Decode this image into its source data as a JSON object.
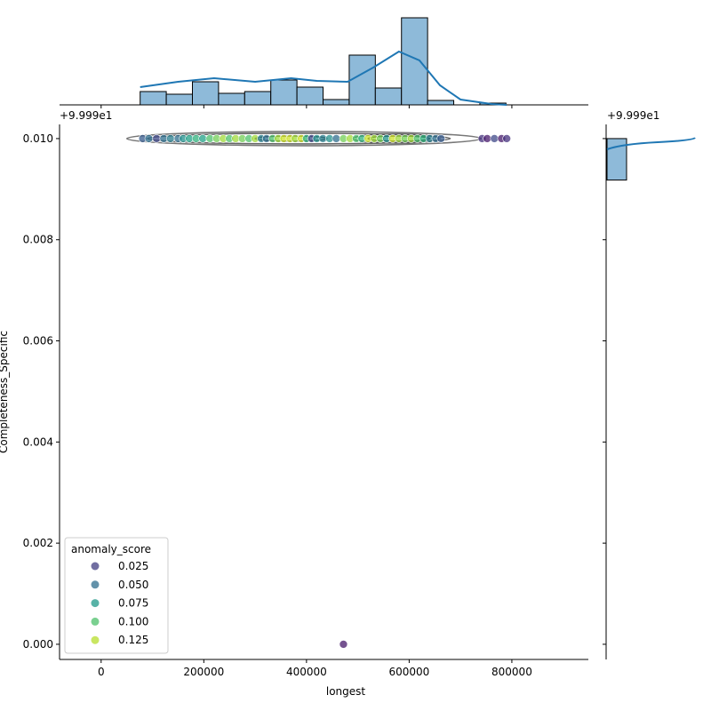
{
  "chart_data": {
    "type": "scatter",
    "xlabel": "longest",
    "ylabel": "Completeness_Specific",
    "y_offset_label": "+9.999e1",
    "right_offset_label": "+9.999e1",
    "xlim": [
      -81000,
      949000
    ],
    "ylim": [
      -0.0003,
      0.01028
    ],
    "xticks": [
      0,
      200000,
      400000,
      600000,
      800000
    ],
    "xtick_labels": [
      "0",
      "200000",
      "400000",
      "600000",
      "800000"
    ],
    "yticks": [
      0.0,
      0.002,
      0.004,
      0.006,
      0.008,
      0.01
    ],
    "ytick_labels": [
      "0.000",
      "0.002",
      "0.004",
      "0.006",
      "0.008",
      "0.010"
    ],
    "legend": {
      "title": "anomaly_score",
      "placement": "lower-left",
      "entries": [
        {
          "label": "0.025",
          "value": 0.025
        },
        {
          "label": "0.050",
          "value": 0.05
        },
        {
          "label": "0.075",
          "value": 0.075
        },
        {
          "label": "0.100",
          "value": 0.1
        },
        {
          "label": "0.125",
          "value": 0.125
        }
      ]
    },
    "colormap": "viridis",
    "hue_range": [
      0.0,
      0.14
    ],
    "points": [
      [
        81000,
        0.04
      ],
      [
        93000,
        0.05
      ],
      [
        108000,
        0.03
      ],
      [
        122000,
        0.05
      ],
      [
        135000,
        0.06
      ],
      [
        150000,
        0.05
      ],
      [
        160000,
        0.07
      ],
      [
        172000,
        0.08
      ],
      [
        185000,
        0.09
      ],
      [
        198000,
        0.08
      ],
      [
        212000,
        0.1
      ],
      [
        225000,
        0.11
      ],
      [
        238000,
        0.12
      ],
      [
        250000,
        0.1
      ],
      [
        262000,
        0.12
      ],
      [
        275000,
        0.11
      ],
      [
        288000,
        0.1
      ],
      [
        300000,
        0.12
      ],
      [
        312000,
        0.06
      ],
      [
        322000,
        0.05
      ],
      [
        334000,
        0.1
      ],
      [
        345000,
        0.12
      ],
      [
        356000,
        0.13
      ],
      [
        368000,
        0.13
      ],
      [
        378000,
        0.12
      ],
      [
        390000,
        0.13
      ],
      [
        400000,
        0.09
      ],
      [
        410000,
        0.03
      ],
      [
        420000,
        0.07
      ],
      [
        432000,
        0.06
      ],
      [
        445000,
        0.07
      ],
      [
        458000,
        0.05
      ],
      [
        472000,
        0.11
      ],
      [
        485000,
        0.12
      ],
      [
        497000,
        0.1
      ],
      [
        508000,
        0.09
      ],
      [
        520000,
        0.13
      ],
      [
        532000,
        0.12
      ],
      [
        544000,
        0.11
      ],
      [
        556000,
        0.07
      ],
      [
        568000,
        0.13
      ],
      [
        580000,
        0.12
      ],
      [
        592000,
        0.11
      ],
      [
        604000,
        0.12
      ],
      [
        616000,
        0.1
      ],
      [
        628000,
        0.09
      ],
      [
        640000,
        0.06
      ],
      [
        652000,
        0.05
      ],
      [
        662000,
        0.04
      ],
      [
        742000,
        0.02
      ],
      [
        752000,
        0.01
      ],
      [
        766000,
        0.03
      ],
      [
        780000,
        0.01
      ],
      [
        790000,
        0.02
      ]
    ],
    "outlier": [
      472000,
      0.0,
      0.01
    ],
    "point_y": 0.01,
    "top_histogram": {
      "bin_start": 76000,
      "bin_width": 50900,
      "counts": [
        15,
        12,
        26,
        13,
        15,
        28,
        20,
        6,
        56,
        19,
        98,
        5,
        0,
        2
      ]
    },
    "top_kde": [
      [
        76000,
        0.2
      ],
      [
        150000,
        0.26
      ],
      [
        220000,
        0.3
      ],
      [
        300000,
        0.26
      ],
      [
        370000,
        0.3
      ],
      [
        420000,
        0.27
      ],
      [
        480000,
        0.26
      ],
      [
        530000,
        0.42
      ],
      [
        580000,
        0.6
      ],
      [
        620000,
        0.5
      ],
      [
        660000,
        0.22
      ],
      [
        700000,
        0.06
      ],
      [
        760000,
        0.01
      ],
      [
        790000,
        0.0
      ]
    ],
    "right_histogram": {
      "value": 0.01,
      "bar_from": 0.00918,
      "bar_to": 0.01
    }
  }
}
